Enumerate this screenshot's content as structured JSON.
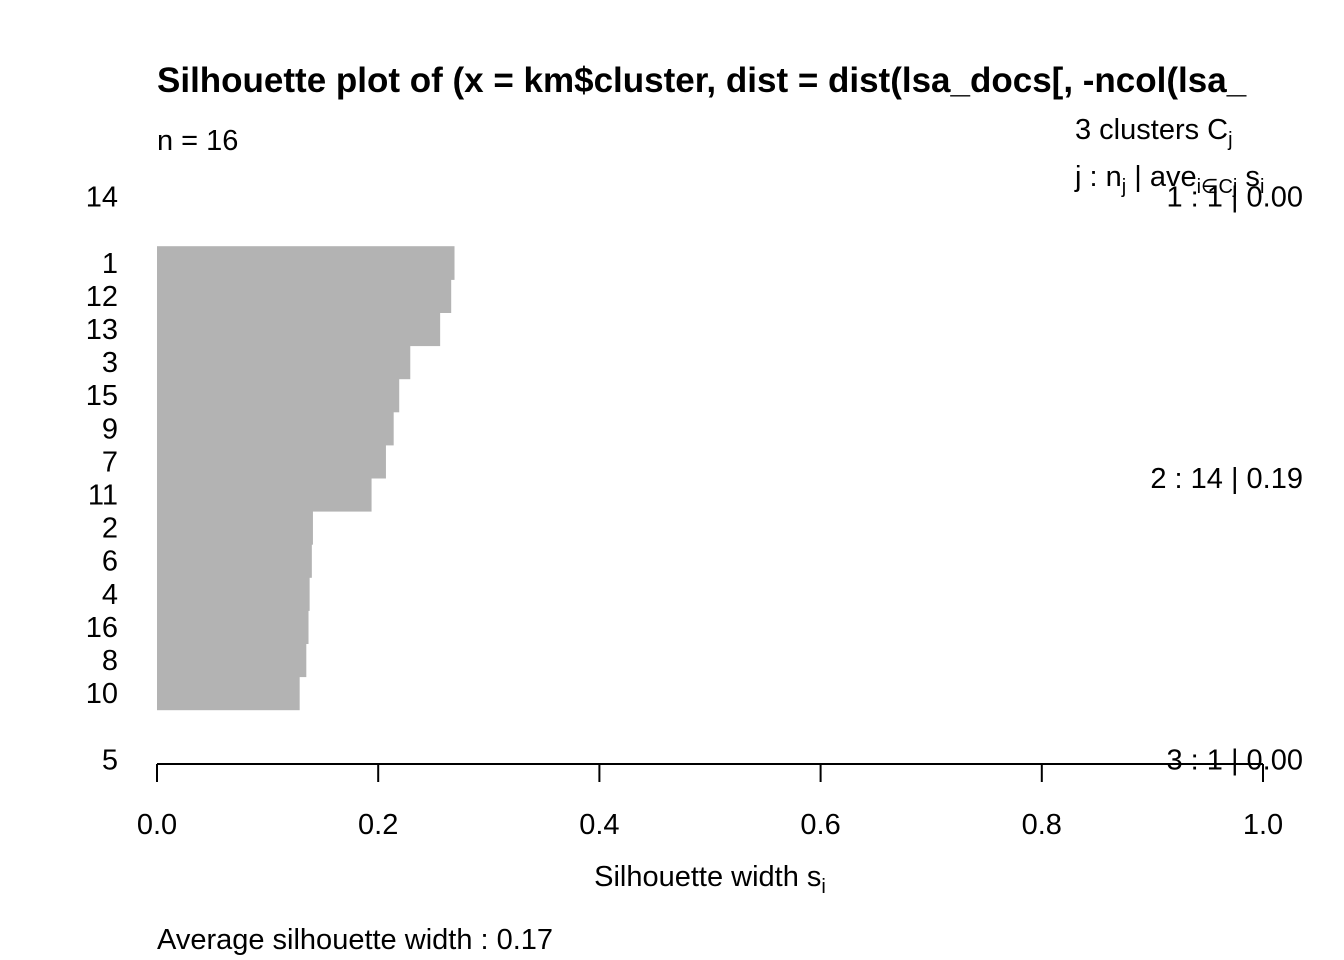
{
  "chart_data": {
    "type": "bar",
    "orientation": "horizontal",
    "title": "Silhouette plot of (x = km$cluster, dist = dist(lsa_docs[, -ncol(lsa_",
    "subtitle": "n = 16",
    "xlabel_main": "Silhouette width s",
    "xlabel_sub": "i",
    "xlim": [
      0,
      1
    ],
    "xticks": [
      "0.0",
      "0.2",
      "0.4",
      "0.6",
      "0.8",
      "1.0"
    ],
    "xtick_values": [
      0,
      0.2,
      0.4,
      0.6,
      0.8,
      1.0
    ],
    "bar_color": "#b3b3b3",
    "legend_header": {
      "line1_main": "3  clusters  C",
      "line1_sub": "j",
      "line2_a": "j :  n",
      "line2_a_sub": "j",
      "line2_b": " | ave",
      "line2_b_sub": "i∈Cj",
      "line2_c": "  s",
      "line2_c_sub": "i"
    },
    "clusters": [
      {
        "label": "1 :   1  |  0.00",
        "observations": [
          {
            "id": "14",
            "width": 0.0
          }
        ]
      },
      {
        "label": "2 :   14  |  0.19",
        "observations": [
          {
            "id": "1",
            "width": 0.269
          },
          {
            "id": "12",
            "width": 0.266
          },
          {
            "id": "13",
            "width": 0.256
          },
          {
            "id": "3",
            "width": 0.229
          },
          {
            "id": "15",
            "width": 0.219
          },
          {
            "id": "9",
            "width": 0.214
          },
          {
            "id": "7",
            "width": 0.207
          },
          {
            "id": "11",
            "width": 0.194
          },
          {
            "id": "2",
            "width": 0.141
          },
          {
            "id": "6",
            "width": 0.14
          },
          {
            "id": "4",
            "width": 0.138
          },
          {
            "id": "16",
            "width": 0.137
          },
          {
            "id": "8",
            "width": 0.135
          },
          {
            "id": "10",
            "width": 0.129
          }
        ]
      },
      {
        "label": "3 :   1  |  0.00",
        "observations": [
          {
            "id": "5",
            "width": 0.0
          }
        ]
      }
    ],
    "footer": "Average silhouette width :  0.17"
  }
}
